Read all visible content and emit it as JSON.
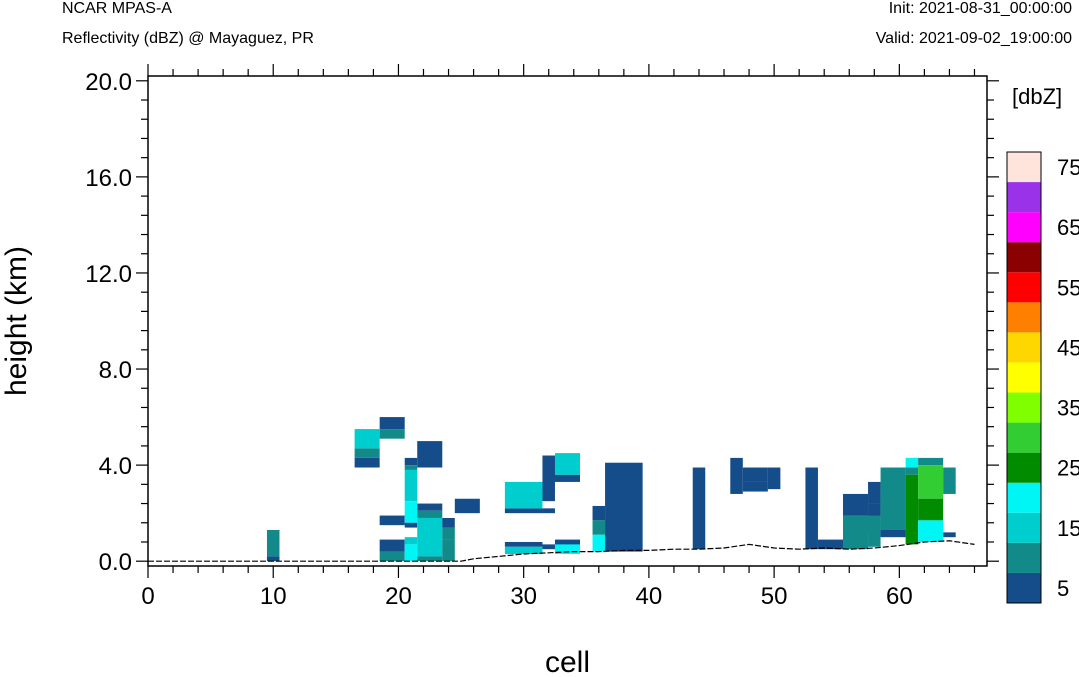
{
  "header": {
    "model": "NCAR MPAS-A",
    "subtitle": "Reflectivity (dBZ) @ Mayaguez, PR",
    "init": "Init: 2021-08-31_00:00:00",
    "valid": "Valid: 2021-09-02_19:00:00"
  },
  "chart_data": {
    "type": "heatmap",
    "xlabel": "cell",
    "ylabel": "height (km)",
    "xlim": [
      0,
      67
    ],
    "ylim": [
      -0.2,
      20.2
    ],
    "x_ticks": [
      0,
      10,
      20,
      30,
      40,
      50,
      60
    ],
    "x_tick_labels": [
      "0",
      "10",
      "20",
      "30",
      "40",
      "50",
      "60"
    ],
    "y_ticks": [
      0,
      4,
      8,
      12,
      16,
      20
    ],
    "y_tick_labels": [
      "0.0",
      "4.0",
      "8.0",
      "12.0",
      "16.0",
      "20.0"
    ],
    "colorbar": {
      "title": "[dbZ]",
      "levels": [
        5,
        10,
        15,
        20,
        25,
        30,
        35,
        40,
        45,
        50,
        55,
        60,
        65,
        70,
        75
      ],
      "labels": [
        "5",
        "15",
        "25",
        "35",
        "45",
        "55",
        "65",
        "75"
      ],
      "colors": [
        "#154d8a",
        "#128a8a",
        "#00cdcd",
        "#00f5f5",
        "#008b00",
        "#32cd32",
        "#7fff00",
        "#ffff00",
        "#ffd700",
        "#ff8000",
        "#ff0000",
        "#8b0000",
        "#ff00ff",
        "#9932e8",
        "#ffe4dc"
      ]
    },
    "terrain": [
      [
        0,
        0
      ],
      [
        25,
        0
      ],
      [
        26,
        0.1
      ],
      [
        28,
        0.2
      ],
      [
        30,
        0.3
      ],
      [
        32,
        0.35
      ],
      [
        34,
        0.4
      ],
      [
        36,
        0.4
      ],
      [
        38,
        0.45
      ],
      [
        40,
        0.45
      ],
      [
        42,
        0.5
      ],
      [
        44,
        0.5
      ],
      [
        46,
        0.55
      ],
      [
        48,
        0.7
      ],
      [
        50,
        0.55
      ],
      [
        52,
        0.5
      ],
      [
        54,
        0.55
      ],
      [
        56,
        0.5
      ],
      [
        58,
        0.55
      ],
      [
        60,
        0.65
      ],
      [
        62,
        0.8
      ],
      [
        64,
        0.85
      ],
      [
        66,
        0.7
      ]
    ],
    "cells": [
      [
        9.5,
        10.5,
        0,
        0.2,
        5
      ],
      [
        9.5,
        10.5,
        0.2,
        1.3,
        10
      ],
      [
        16.5,
        18.5,
        3.9,
        4.3,
        5
      ],
      [
        16.5,
        18.5,
        4.3,
        4.7,
        10
      ],
      [
        16.5,
        18.5,
        4.7,
        5.5,
        15
      ],
      [
        18.5,
        20.5,
        5.5,
        6.0,
        5
      ],
      [
        18.5,
        20.5,
        5.1,
        5.5,
        10
      ],
      [
        18.5,
        20.5,
        1.5,
        1.9,
        5
      ],
      [
        18.5,
        20.5,
        0.4,
        0.9,
        5
      ],
      [
        18.5,
        20.5,
        0,
        0.4,
        10
      ],
      [
        20.5,
        21.5,
        4.0,
        4.3,
        5
      ],
      [
        20.5,
        21.5,
        3.8,
        4.0,
        10
      ],
      [
        20.5,
        21.5,
        2.5,
        3.8,
        15
      ],
      [
        20.5,
        21.5,
        1.6,
        2.5,
        20
      ],
      [
        20.5,
        21.5,
        1.4,
        1.6,
        5
      ],
      [
        20.5,
        21.5,
        0.7,
        1.0,
        15
      ],
      [
        20.5,
        21.5,
        0,
        0.7,
        20
      ],
      [
        21.5,
        23.5,
        3.9,
        5.0,
        5
      ],
      [
        21.5,
        23.5,
        2.1,
        2.4,
        5
      ],
      [
        21.5,
        23.5,
        1.8,
        2.1,
        10
      ],
      [
        21.5,
        23.5,
        0.2,
        1.8,
        15
      ],
      [
        21.5,
        23.5,
        0,
        0.2,
        10
      ],
      [
        23.5,
        24.5,
        1.4,
        1.8,
        5
      ],
      [
        23.5,
        24.5,
        0.9,
        1.4,
        10
      ],
      [
        23.5,
        24.5,
        0,
        0.9,
        10
      ],
      [
        24.5,
        26.5,
        2.0,
        2.6,
        5
      ],
      [
        28.5,
        31.5,
        2.0,
        2.2,
        5
      ],
      [
        28.5,
        31.5,
        2.2,
        3.3,
        15
      ],
      [
        28.5,
        31.5,
        0.6,
        0.8,
        5
      ],
      [
        28.5,
        31.5,
        0.3,
        0.6,
        15
      ],
      [
        31.5,
        32.5,
        2.0,
        2.2,
        5
      ],
      [
        31.5,
        32.5,
        0.5,
        0.7,
        5
      ],
      [
        31.5,
        32.5,
        2.5,
        4.4,
        5
      ],
      [
        32.5,
        34.5,
        3.3,
        3.6,
        5
      ],
      [
        32.5,
        34.5,
        3.6,
        4.5,
        15
      ],
      [
        32.5,
        34.5,
        0.4,
        0.9,
        5
      ],
      [
        32.5,
        34.5,
        0.3,
        0.7,
        20
      ],
      [
        35.5,
        36.5,
        1.7,
        2.3,
        5
      ],
      [
        35.5,
        36.5,
        1.1,
        1.7,
        10
      ],
      [
        35.5,
        36.5,
        0.4,
        1.1,
        20
      ],
      [
        36.5,
        39.5,
        0.4,
        4.1,
        5
      ],
      [
        43.5,
        44.5,
        0.5,
        3.9,
        5
      ],
      [
        46.5,
        47.5,
        2.8,
        4.3,
        5
      ],
      [
        47.5,
        49.5,
        3.3,
        3.9,
        5
      ],
      [
        47.5,
        49.5,
        2.9,
        3.3,
        5
      ],
      [
        49.5,
        50.5,
        3.0,
        3.9,
        5
      ],
      [
        52.5,
        53.5,
        0.5,
        3.9,
        5
      ],
      [
        53.5,
        55.5,
        0.5,
        0.9,
        5
      ],
      [
        55.5,
        57.5,
        1.9,
        2.8,
        5
      ],
      [
        55.5,
        57.5,
        0.5,
        1.9,
        10
      ],
      [
        57.5,
        58.5,
        1.3,
        2.4,
        5
      ],
      [
        57.5,
        58.5,
        0.6,
        1.9,
        10
      ],
      [
        57.5,
        58.5,
        2.4,
        3.3,
        5
      ],
      [
        58.5,
        60.5,
        1.3,
        3.9,
        10
      ],
      [
        58.5,
        60.5,
        1.0,
        1.3,
        5
      ],
      [
        60.5,
        61.5,
        3.9,
        4.3,
        20
      ],
      [
        60.5,
        61.5,
        3.6,
        3.9,
        10
      ],
      [
        60.5,
        61.5,
        0.7,
        3.6,
        25
      ],
      [
        61.5,
        63.5,
        4.0,
        4.3,
        10
      ],
      [
        61.5,
        63.5,
        2.6,
        4.0,
        30
      ],
      [
        61.5,
        63.5,
        1.7,
        2.6,
        25
      ],
      [
        61.5,
        63.5,
        0.8,
        1.7,
        20
      ],
      [
        63.5,
        64.5,
        2.8,
        3.9,
        10
      ],
      [
        63.5,
        64.5,
        1.0,
        1.2,
        5
      ]
    ]
  }
}
